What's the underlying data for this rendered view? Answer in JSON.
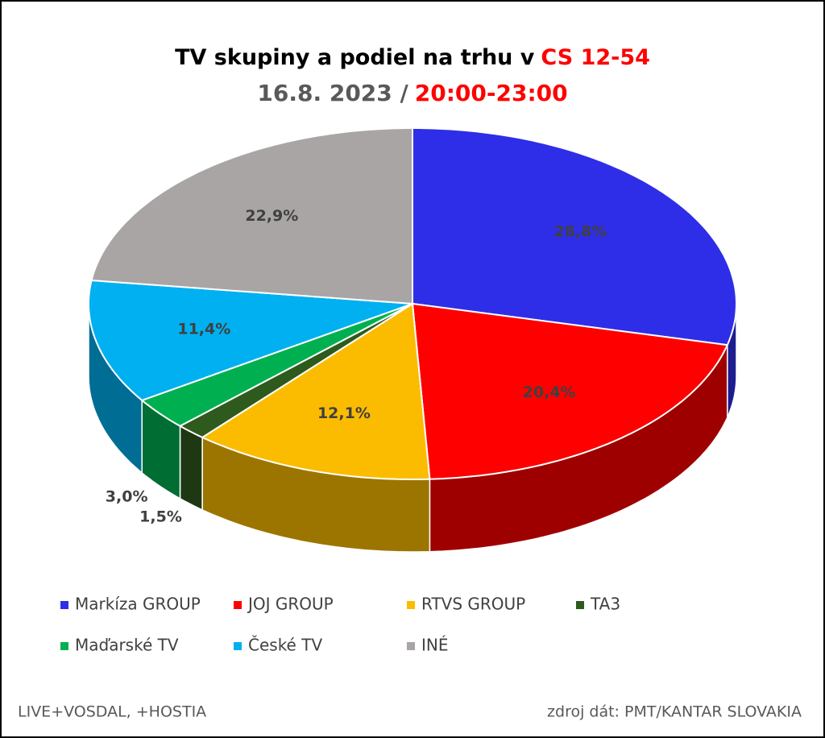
{
  "chart_data": {
    "type": "pie3d",
    "title": "TV skupiny a podiel na trhu v",
    "title_highlight": "CS 12-54",
    "subtitle": "16.8. 2023 /",
    "subtitle_highlight": "20:00-23:00",
    "categories": [
      "Markíza GROUP",
      "JOJ GROUP",
      "RTVS GROUP",
      "TA3",
      "Maďarské  TV",
      "České  TV",
      "INÉ"
    ],
    "values": [
      28.8,
      20.4,
      12.1,
      1.5,
      3.0,
      11.4,
      22.9
    ],
    "value_labels": [
      "28,8%",
      "20,4%",
      "12,1%",
      "1,5%",
      "3,0%",
      "11,4%",
      "22,9%"
    ],
    "colors": [
      "#2e2ee8",
      "#ff0000",
      "#fbbc00",
      "#2e5a1e",
      "#00b050",
      "#00b0f0",
      "#a9a5a5"
    ],
    "legend_order": [
      0,
      1,
      2,
      3,
      4,
      5,
      6
    ],
    "notes": [
      "LIVE+VOSDAL, +HOSTIA",
      "zdroj dát: PMT/KANTAR SLOVAKIA"
    ]
  }
}
